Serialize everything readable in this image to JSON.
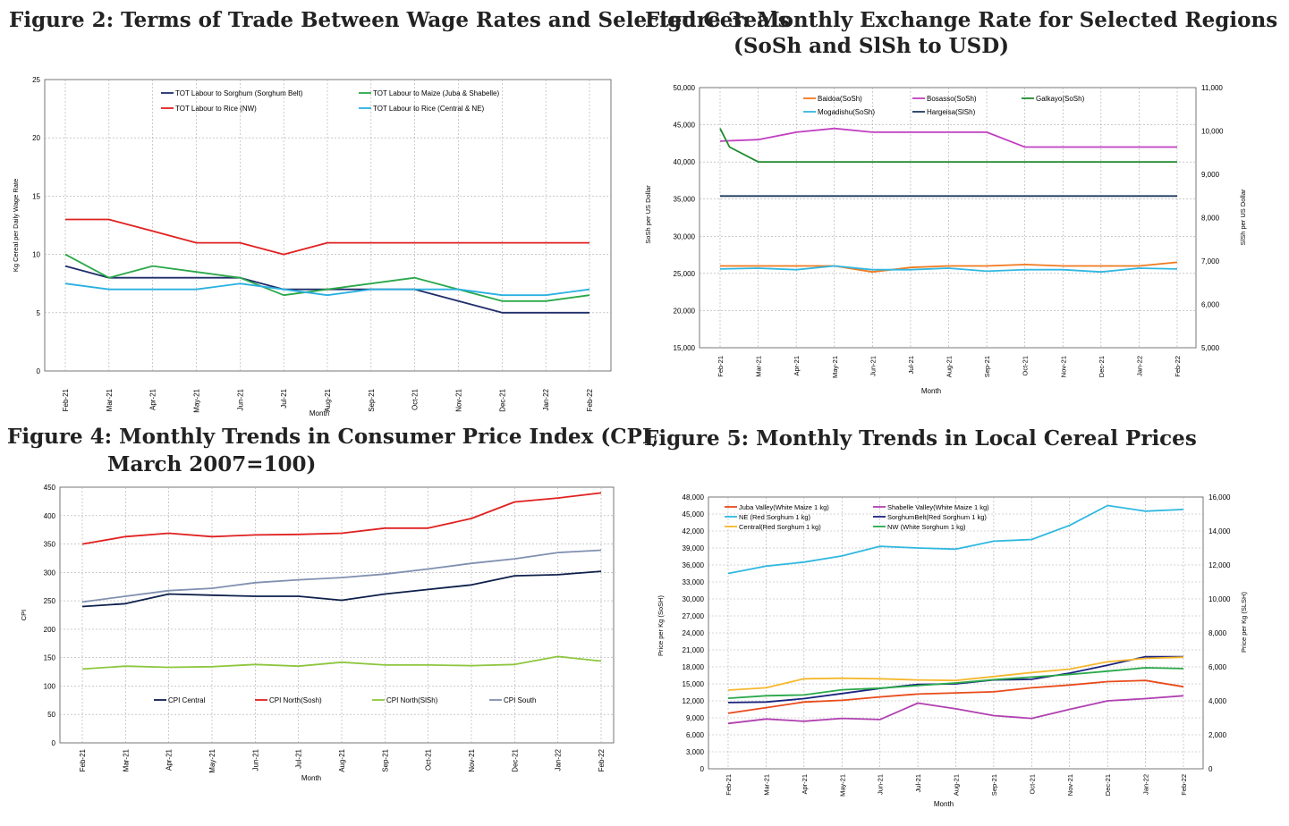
{
  "titles": {
    "fig2": "Figure 2: Terms of Trade Between Wage Rates and Selected Cereals",
    "fig3_line1": "Figure 3: Monthly Exchange Rate for Selected Regions",
    "fig3_line2": "(SoSh and SlSh to USD)",
    "fig4_line1": "Figure 4: Monthly Trends in Consumer Price Index (CPI,",
    "fig4_line2": "March 2007=100)",
    "fig5": "Figure 5: Monthly Trends in Local Cereal Prices"
  },
  "chart_data": [
    {
      "id": "fig2",
      "type": "line",
      "title": "Figure 2: Terms of Trade Between Wage Rates and Selected Cereals",
      "xlabel": "Month",
      "ylabel": "Kg Cereal per Daily Wage Rate",
      "categories": [
        "Feb-21",
        "Mar-21",
        "Apr-21",
        "May-21",
        "Jun-21",
        "Jul-21",
        "Aug-21",
        "Sep-21",
        "Oct-21",
        "Nov-21",
        "Dec-21",
        "Jan-22",
        "Feb-22"
      ],
      "ylim": [
        0,
        25
      ],
      "yticks": [
        0,
        5,
        10,
        15,
        20,
        25
      ],
      "legend_position": "top",
      "series": [
        {
          "name": "TOT Labour to Sorghum (Sorghum Belt)",
          "color": "#1f2d6b",
          "values": [
            9,
            8,
            8,
            8,
            8,
            7,
            7,
            7,
            7,
            6,
            5,
            5,
            5
          ]
        },
        {
          "name": "TOT Labour to Maize (Juba & Shabelle)",
          "color": "#2aa84a",
          "values": [
            10,
            8,
            9,
            8.5,
            8,
            6.5,
            7,
            7.5,
            8,
            7,
            6,
            6,
            6.5
          ]
        },
        {
          "name": "TOT Labour to Rice (NW)",
          "color": "#e02020",
          "values": [
            13,
            13,
            12,
            11,
            11,
            10,
            11,
            11,
            11,
            11,
            11,
            11,
            11
          ]
        },
        {
          "name": "TOT Labour to Rice (Central & NE)",
          "color": "#2ab0e0",
          "values": [
            7.5,
            7,
            7,
            7,
            7.5,
            7,
            6.5,
            7,
            7,
            7,
            6.5,
            6.5,
            7
          ]
        }
      ]
    },
    {
      "id": "fig3",
      "type": "line",
      "title": "Figure 3: Monthly Exchange Rate for Selected Regions (SoSh and SlSh to USD)",
      "xlabel": "Month",
      "ylabel": "SoSh per US Dollar",
      "ylabel_right": "SlSh per US Dollar",
      "categories": [
        "Feb-21",
        "Mar-21",
        "Apr-21",
        "May-21",
        "Jun-21",
        "Jul-21",
        "Aug-21",
        "Sep-21",
        "Oct-21",
        "Nov-21",
        "Dec-21",
        "Jan-22",
        "Feb-22"
      ],
      "ylim": [
        15000,
        50000
      ],
      "yticks": [
        "15,000",
        "20,000",
        "25,000",
        "30,000",
        "35,000",
        "40,000",
        "45,000",
        "50,000"
      ],
      "ylim_right": [
        5000,
        11000
      ],
      "yticks_right": [
        "5,000",
        "6,000",
        "7,000",
        "8,000",
        "9,000",
        "10,000",
        "11,000"
      ],
      "legend_position": "top",
      "series": [
        {
          "name": "Baidoa(SoSh)",
          "axis": "left",
          "color": "#f07a20",
          "values": [
            26000,
            26000,
            26000,
            26000,
            25200,
            25800,
            26000,
            26000,
            26200,
            26000,
            26000,
            26000,
            26500
          ]
        },
        {
          "name": "Bosasso(SoSh)",
          "axis": "left",
          "color": "#c040c0",
          "values": [
            42800,
            43000,
            44000,
            44500,
            44000,
            44000,
            44000,
            44000,
            42000,
            42000,
            42000,
            42000,
            42000
          ]
        },
        {
          "name": "Galkayo(SoSh)",
          "axis": "left",
          "color": "#1e8a2e",
          "values": [
            44500,
            40000,
            40000,
            40000,
            40000,
            40000,
            40000,
            40000,
            40000,
            40000,
            40000,
            40000,
            40000
          ],
          "extra_point": 42000
        },
        {
          "name": "Mogadishu(SoSh)",
          "axis": "left",
          "color": "#30b8e0",
          "values": [
            25600,
            25700,
            25500,
            26000,
            25500,
            25500,
            25700,
            25300,
            25500,
            25500,
            25200,
            25700,
            25600
          ]
        },
        {
          "name": "Hargeisa(SlSh)",
          "axis": "right",
          "color": "#1f3a5f",
          "values": [
            8500,
            8500,
            8500,
            8500,
            8500,
            8500,
            8500,
            8500,
            8500,
            8500,
            8500,
            8500,
            8500
          ]
        }
      ]
    },
    {
      "id": "fig4",
      "type": "line",
      "title": "Figure 4: Monthly Trends in Consumer Price Index (CPI, March 2007=100)",
      "xlabel": "Month",
      "ylabel": "CPI",
      "categories": [
        "Feb-21",
        "Mar-21",
        "Apr-21",
        "May-21",
        "Jun-21",
        "Jul-21",
        "Aug-21",
        "Sep-21",
        "Oct-21",
        "Nov-21",
        "Dec-21",
        "Jan-22",
        "Feb-22"
      ],
      "ylim": [
        0,
        450
      ],
      "yticks": [
        0,
        50,
        100,
        150,
        200,
        250,
        300,
        350,
        400,
        450
      ],
      "legend_position": "bottom",
      "series": [
        {
          "name": "CPI  Central",
          "color": "#0d1f4a",
          "values": [
            240,
            245,
            262,
            260,
            258,
            258,
            251,
            262,
            270,
            278,
            294,
            296,
            302
          ]
        },
        {
          "name": "CPI  North(Sosh)",
          "color": "#e02020",
          "values": [
            350,
            363,
            369,
            363,
            366,
            367,
            369,
            378,
            378,
            395,
            424,
            431,
            440
          ]
        },
        {
          "name": "CPI  North(SlSh)",
          "color": "#8ec63f",
          "values": [
            130,
            135,
            133,
            134,
            138,
            135,
            142,
            137,
            137,
            136,
            138,
            152,
            144
          ]
        },
        {
          "name": "CPI  South",
          "color": "#8090b0",
          "values": [
            248,
            258,
            268,
            272,
            282,
            287,
            291,
            297,
            306,
            316,
            324,
            335,
            339
          ]
        }
      ]
    },
    {
      "id": "fig5",
      "type": "line",
      "title": "Figure 5: Monthly Trends in Local Cereal Prices",
      "xlabel": "Month",
      "ylabel": "Price per Kg (SoSH)",
      "ylabel_right": "Price per Kg (SLSH)",
      "categories": [
        "Feb-21",
        "Mar-21",
        "Apr-21",
        "May-21",
        "Jun-21",
        "Jul-21",
        "Aug-21",
        "Sep-21",
        "Oct-21",
        "Nov-21",
        "Dec-21",
        "Jan-22",
        "Feb-22"
      ],
      "ylim": [
        0,
        48000
      ],
      "yticks": [
        "0",
        "3,000",
        "6,000",
        "9,000",
        "12,000",
        "15,000",
        "18,000",
        "21,000",
        "24,000",
        "27,000",
        "30,000",
        "33,000",
        "36,000",
        "39,000",
        "42,000",
        "45,000",
        "48,000"
      ],
      "ylim_right": [
        0,
        16000
      ],
      "yticks_right": [
        "0",
        "2,000",
        "4,000",
        "6,000",
        "8,000",
        "10,000",
        "12,000",
        "14,000",
        "16,000"
      ],
      "legend_position": "top",
      "series": [
        {
          "name": "Juba Valley(White Maize 1 kg)",
          "axis": "left",
          "color": "#e84a1a",
          "values": [
            9800,
            10800,
            11800,
            12100,
            12700,
            13200,
            13400,
            13600,
            14300,
            14800,
            15400,
            15600,
            14500
          ]
        },
        {
          "name": "Shabelle Valley(White Maize 1 kg)",
          "axis": "left",
          "color": "#b040b0",
          "values": [
            8000,
            8800,
            8400,
            8900,
            8700,
            11600,
            10600,
            9400,
            8900,
            10500,
            12000,
            12400,
            12900
          ]
        },
        {
          "name": "NE (Red Sorghum 1 kg)",
          "axis": "left",
          "color": "#30b8e0",
          "values": [
            34500,
            35800,
            36500,
            37600,
            39300,
            39000,
            38800,
            40200,
            40500,
            43000,
            46500,
            45500,
            45800
          ]
        },
        {
          "name": "SorghumBelt(Red Sorghum 1 kg)",
          "axis": "left",
          "color": "#1a237e",
          "values": [
            11700,
            11800,
            12400,
            13300,
            14200,
            14900,
            15000,
            15700,
            15800,
            16900,
            18300,
            19800,
            19800
          ]
        },
        {
          "name": "Central(Red Sorghum 1 kg)",
          "axis": "left",
          "color": "#f5b82e",
          "values": [
            13900,
            14300,
            15900,
            16000,
            15900,
            15700,
            15600,
            16300,
            17000,
            17600,
            18900,
            19500,
            19700
          ]
        },
        {
          "name": "NW (White Sorghum 1 kg)",
          "axis": "right",
          "color": "#2aa84a",
          "values": [
            4150,
            4300,
            4350,
            4650,
            4750,
            4900,
            5050,
            5250,
            5400,
            5550,
            5750,
            5950,
            5900
          ]
        }
      ]
    }
  ]
}
